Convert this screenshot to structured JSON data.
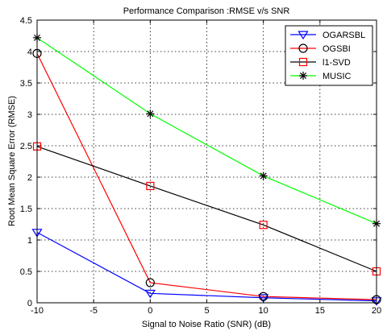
{
  "chart_data": {
    "type": "line",
    "title": "Performance Comparison :RMSE v/s SNR",
    "xlabel": "Signal to Noise Ratio (SNR) (dB)",
    "ylabel": "Root Mean Square Error (RMSE)",
    "xlim": [
      -10,
      20
    ],
    "ylim": [
      0,
      4.5
    ],
    "xticks": [
      -10,
      -5,
      0,
      5,
      10,
      15,
      20
    ],
    "yticks": [
      0,
      0.5,
      1,
      1.5,
      2,
      2.5,
      3,
      3.5,
      4,
      4.5
    ],
    "grid": true,
    "legend_position": "top-right",
    "x": [
      -10,
      0,
      10,
      20
    ],
    "series": [
      {
        "name": "OGARSBL",
        "values": [
          1.12,
          0.15,
          0.08,
          0.03
        ],
        "color": "#0000ff",
        "line": "#0000ff",
        "marker": "triangle-down"
      },
      {
        "name": "OGSBI",
        "values": [
          3.97,
          0.32,
          0.1,
          0.05
        ],
        "color": "#000000",
        "line": "#ff0000",
        "marker": "circle"
      },
      {
        "name": "l1-SVD",
        "values": [
          2.49,
          1.86,
          1.24,
          0.5
        ],
        "color": "#ff0000",
        "line": "#000000",
        "marker": "square"
      },
      {
        "name": "MUSIC",
        "values": [
          4.22,
          3.01,
          2.02,
          1.26
        ],
        "color": "#000000",
        "line": "#00ff00",
        "marker": "star"
      }
    ]
  }
}
